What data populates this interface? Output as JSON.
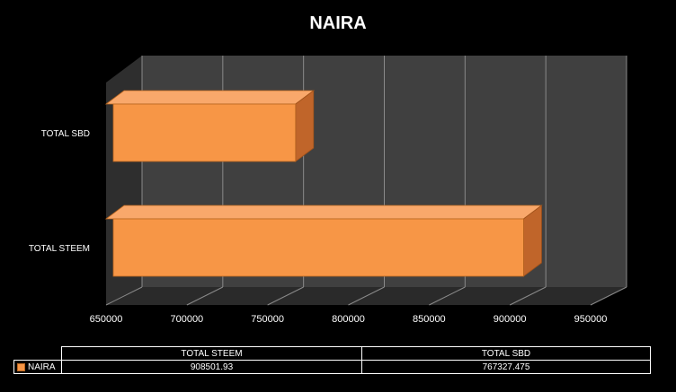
{
  "chart_data": {
    "type": "bar",
    "orientation": "horizontal",
    "title": "NAIRA",
    "categories": [
      "TOTAL STEEM",
      "TOTAL SBD"
    ],
    "series": [
      {
        "name": "NAIRA",
        "values": [
          908501.93,
          767327.475
        ]
      }
    ],
    "xlim": [
      650000,
      950000
    ],
    "xticks": [
      "650000",
      "700000",
      "750000",
      "800000",
      "850000",
      "900000",
      "950000"
    ],
    "grid": true,
    "legend": "data-table",
    "colors": {
      "bar": "#f79646",
      "bar_side": "#c0652a",
      "background": "#000000",
      "wall": "#404040"
    }
  },
  "data_table": {
    "headers": [
      "TOTAL STEEM",
      "TOTAL SBD"
    ],
    "row_label": "NAIRA",
    "values": [
      "908501.93",
      "767327.475"
    ]
  }
}
